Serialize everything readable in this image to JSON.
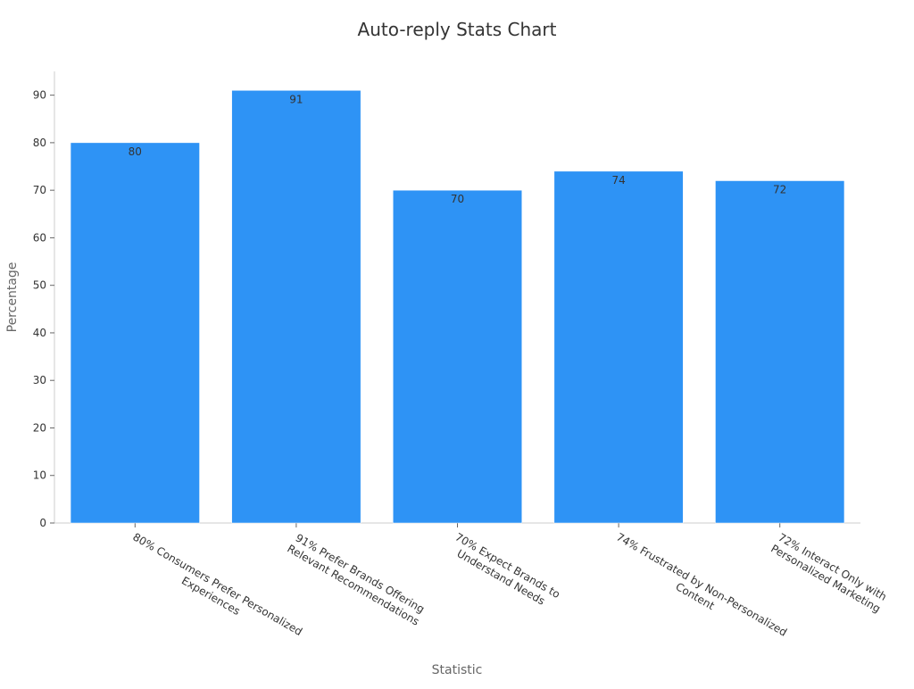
{
  "chart_data": {
    "type": "bar",
    "title": "Auto-reply Stats Chart",
    "xlabel": "Statistic",
    "ylabel": "Percentage",
    "categories": [
      [
        "80% Consumers Prefer Personalized",
        "Experiences"
      ],
      [
        "91% Prefer Brands Offering",
        "Relevant Recommendations"
      ],
      [
        "70% Expect Brands to",
        "Understand Needs"
      ],
      [
        "74% Frustrated by Non-Personalized",
        "Content"
      ],
      [
        "72% Interact Only with",
        "Personalized Marketing"
      ]
    ],
    "values": [
      80,
      91,
      70,
      74,
      72
    ],
    "ylim": [
      0,
      95
    ],
    "yticks": [
      0,
      10,
      20,
      30,
      40,
      50,
      60,
      70,
      80,
      90
    ],
    "bar_color": "#2e93f5",
    "grid": false,
    "legend": "none",
    "data_labels": "inside-top"
  }
}
